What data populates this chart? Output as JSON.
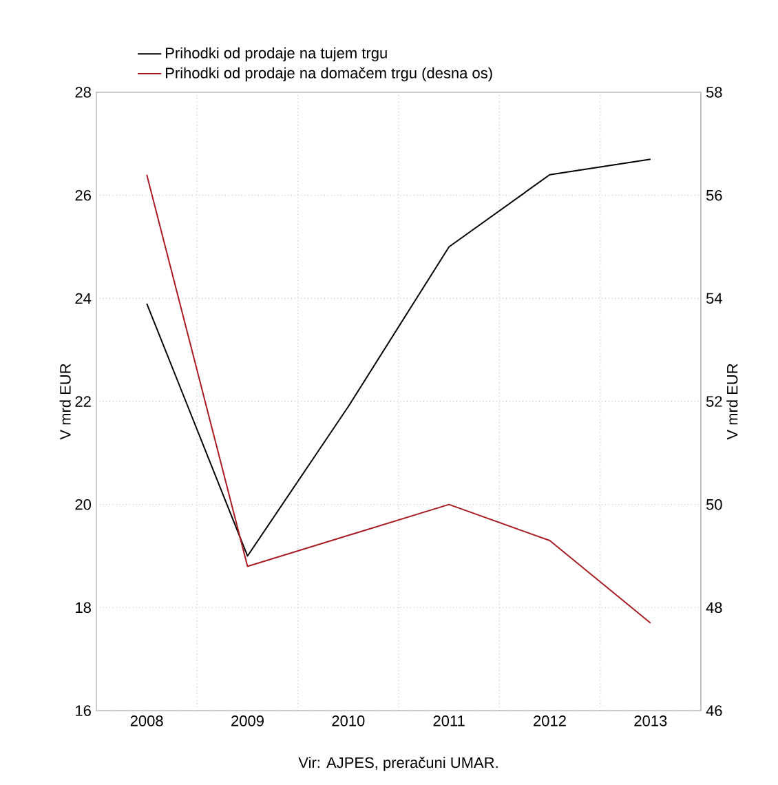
{
  "chart_data": {
    "type": "line",
    "categories": [
      "2008",
      "2009",
      "2010",
      "2011",
      "2012",
      "2013"
    ],
    "series": [
      {
        "name": "Prihodki od prodaje na tujem trgu",
        "color": "#000000",
        "values": [
          23.9,
          19.0,
          21.9,
          25.0,
          26.4,
          26.7
        ]
      },
      {
        "name": "Prihodki od prodaje na domačem trgu (desna os)",
        "color": "#a81c22",
        "axis": "y2",
        "values": [
          56.4,
          48.8,
          49.4,
          50.0,
          49.3,
          47.7
        ]
      }
    ],
    "ylabel": "V mrd EUR",
    "y2label": "V mrd EUR",
    "ylim": [
      16,
      28
    ],
    "yticks": [
      16,
      18,
      20,
      22,
      24,
      26,
      28
    ],
    "y2lim": [
      46,
      58
    ],
    "y2ticks": [
      46,
      48,
      50,
      52,
      54,
      56,
      58
    ],
    "grid": true,
    "legend": "top",
    "line_style": "solid",
    "marker": "none",
    "annotations": [
      "Vir: AJPES, preračuni UMAR."
    ]
  }
}
